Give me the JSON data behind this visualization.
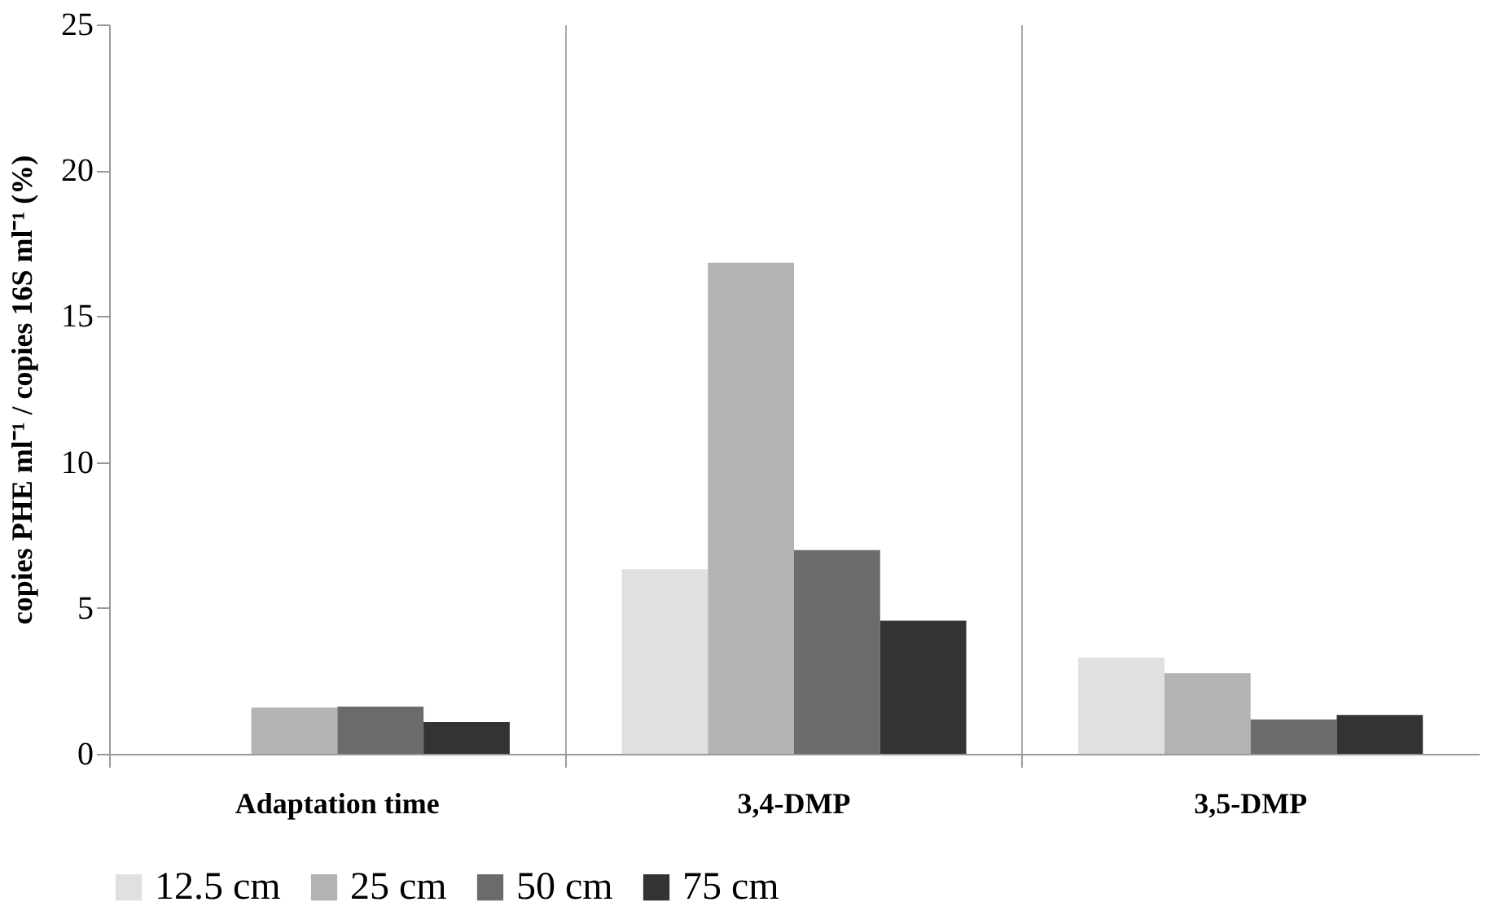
{
  "chart_data": {
    "type": "bar",
    "ylabel": "copies PHE ml⁻¹ / copies  16S ml⁻¹  (%)",
    "categories": [
      "Adaptation time",
      "3,4-DMP",
      "3,5-DMP"
    ],
    "series": [
      {
        "name": "12.5 cm",
        "color": "#e0e0e0",
        "values": [
          null,
          6.33,
          3.3
        ]
      },
      {
        "name": "25 cm",
        "color": "#b3b3b3",
        "values": [
          1.58,
          16.83,
          2.76
        ]
      },
      {
        "name": "50 cm",
        "color": "#6b6b6b",
        "values": [
          1.62,
          6.98,
          1.18
        ]
      },
      {
        "name": "75 cm",
        "color": "#333333",
        "values": [
          1.09,
          4.56,
          1.33
        ]
      }
    ],
    "ylim": [
      0,
      25
    ],
    "yticks": [
      0,
      5,
      10,
      15,
      20,
      25
    ],
    "grid": "x",
    "legend": "bottom"
  }
}
